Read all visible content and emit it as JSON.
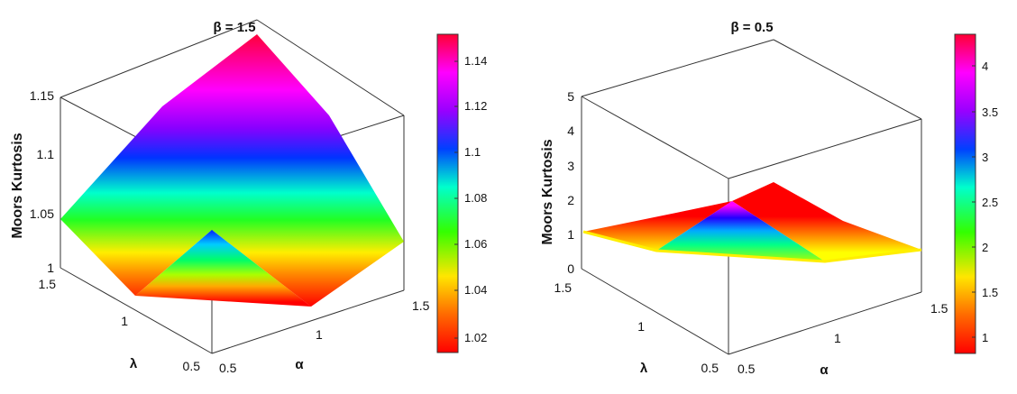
{
  "figure": {
    "plots": [
      {
        "id": "left",
        "title": "β = 1.5",
        "zlabel": "Moors Kurtosis",
        "xlabel": "α",
        "ylabel": "λ",
        "z_ticks": [
          "1",
          "1.05",
          "1.1",
          "1.15"
        ],
        "x_ticks": [
          "0.5",
          "1",
          "1.5"
        ],
        "y_ticks": [
          "0.5",
          "1",
          "1.5"
        ],
        "colorbar_ticks": [
          "1.02",
          "1.04",
          "1.06",
          "1.08",
          "1.1",
          "1.12",
          "1.14"
        ]
      },
      {
        "id": "right",
        "title": "β = 0.5",
        "zlabel": "Moors Kurtosis",
        "xlabel": "α",
        "ylabel": "λ",
        "z_ticks": [
          "0",
          "1",
          "2",
          "3",
          "4",
          "5"
        ],
        "x_ticks": [
          "0.5",
          "1",
          "1.5"
        ],
        "y_ticks": [
          "0.5",
          "1",
          "1.5"
        ],
        "colorbar_ticks": [
          "1",
          "1.5",
          "2",
          "2.5",
          "3",
          "3.5",
          "4"
        ]
      }
    ]
  },
  "chart_data": [
    {
      "type": "surface",
      "title": "β = 1.5",
      "xlabel": "α",
      "ylabel": "λ",
      "zlabel": "Moors Kurtosis",
      "alpha": [
        0.5,
        1,
        1.5
      ],
      "lambda": [
        0.5,
        1,
        1.5
      ],
      "z_grid_rows_lambda_cols_alpha": [
        [
          1.08,
          1.0,
          1.05
        ],
        [
          1.0,
          1.08,
          1.08
        ],
        [
          1.05,
          1.1,
          1.15
        ]
      ],
      "zlim": [
        1,
        1.15
      ],
      "colormap": "hsv-like (red → yellow → green → cyan → blue → magenta → red)",
      "colorbar_range": [
        1.01,
        1.15
      ],
      "grid": false
    },
    {
      "type": "surface",
      "title": "β = 0.5",
      "xlabel": "α",
      "ylabel": "λ",
      "zlabel": "Moors Kurtosis",
      "alpha": [
        0.5,
        1,
        1.5
      ],
      "lambda": [
        0.5,
        1,
        1.5
      ],
      "z_grid_rows_lambda_cols_alpha": [
        [
          1.0,
          1.0,
          1.1
        ],
        [
          1.1,
          2.4,
          1.5
        ],
        [
          1.2,
          1.5,
          1.1
        ]
      ],
      "zlim": [
        0,
        5
      ],
      "colormap": "hsv-like (red → yellow → green → cyan → blue → magenta → red)",
      "colorbar_range": [
        0.8,
        4.3
      ],
      "grid": false
    }
  ]
}
